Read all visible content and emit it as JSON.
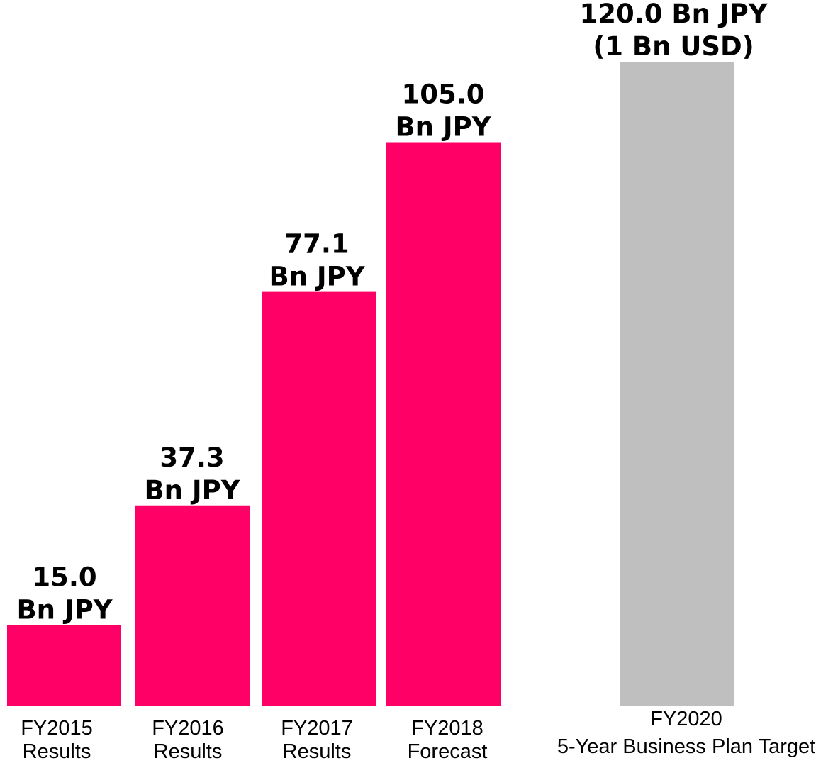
{
  "chart_data": {
    "type": "bar",
    "title": "",
    "xlabel": "",
    "ylabel": "",
    "ylim": [
      0,
      120
    ],
    "grid": false,
    "legend": "none",
    "unit": "Bn JPY",
    "bars": [
      {
        "category_lines": [
          "FY2015",
          "Results"
        ],
        "value": 15.0,
        "label_lines": [
          "15.0",
          "Bn JPY"
        ],
        "color": "#ff0066"
      },
      {
        "category_lines": [
          "FY2016",
          "Results"
        ],
        "value": 37.3,
        "label_lines": [
          "37.3",
          "Bn JPY"
        ],
        "color": "#ff0066"
      },
      {
        "category_lines": [
          "FY2017",
          "Results"
        ],
        "value": 77.1,
        "label_lines": [
          "77.1",
          "Bn JPY"
        ],
        "color": "#ff0066"
      },
      {
        "category_lines": [
          "FY2018",
          "Forecast"
        ],
        "value": 105.0,
        "label_lines": [
          "105.0",
          "Bn JPY"
        ],
        "color": "#ff0066"
      },
      {
        "category_lines": [
          "FY2020",
          "5-Year Business Plan Target"
        ],
        "value": 120.0,
        "label_lines": [
          "120.0 Bn JPY",
          "(1 Bn USD)"
        ],
        "color": "#bfbfbf"
      }
    ]
  }
}
